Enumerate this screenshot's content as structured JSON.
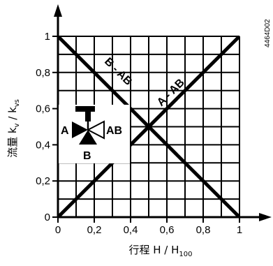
{
  "chart_data": {
    "type": "line",
    "doc_code": "4464D02",
    "xlabel_prefix": "行程 H / H",
    "xlabel_sub": "100",
    "ylabel_prefix": "流量 k",
    "ylabel_sub_v": "v",
    "ylabel_mid": " / k",
    "ylabel_sub_vs": "vs",
    "xlim": [
      0,
      1
    ],
    "ylim": [
      0,
      1
    ],
    "grid": true,
    "x_ticks": [
      "0",
      "0,2",
      "0,4",
      "0,6",
      "0,8",
      "1"
    ],
    "y_ticks": [
      "0",
      "0,2",
      "0,4",
      "0,6",
      "0,8",
      "1"
    ],
    "series": [
      {
        "name": "A - AB",
        "x": [
          0,
          1
        ],
        "y": [
          0,
          1
        ]
      },
      {
        "name": "B - AB",
        "x": [
          0,
          1
        ],
        "y": [
          1,
          0
        ]
      }
    ],
    "valve_ports": {
      "a": "A",
      "ab": "AB",
      "b": "B"
    }
  }
}
